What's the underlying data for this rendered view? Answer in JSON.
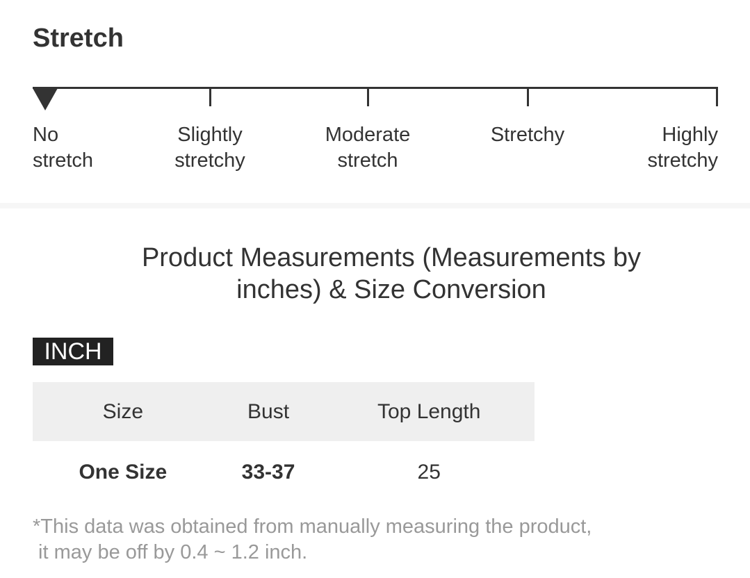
{
  "stretch": {
    "title": "Stretch",
    "selected_level": "No stretch",
    "levels": [
      {
        "line1": "No",
        "line2": "stretch"
      },
      {
        "line1": "Slightly",
        "line2": "stretchy"
      },
      {
        "line1": "Moderate",
        "line2": "stretch"
      },
      {
        "line1": "Stretchy",
        "line2": ""
      },
      {
        "line1": "Highly",
        "line2": "stretchy"
      }
    ]
  },
  "measurements": {
    "heading_line1": "Product Measurements (Measurements by",
    "heading_line2": "inches) & Size Conversion",
    "unit_badge": "INCH",
    "columns": [
      "Size",
      "Bust",
      "Top Length"
    ],
    "rows": [
      [
        "One Size",
        "33-37",
        "25"
      ]
    ],
    "note_line1": "*This data was obtained from manually measuring the product,",
    "note_line2": " it may be off by 0.4 ~ 1.2 inch."
  }
}
